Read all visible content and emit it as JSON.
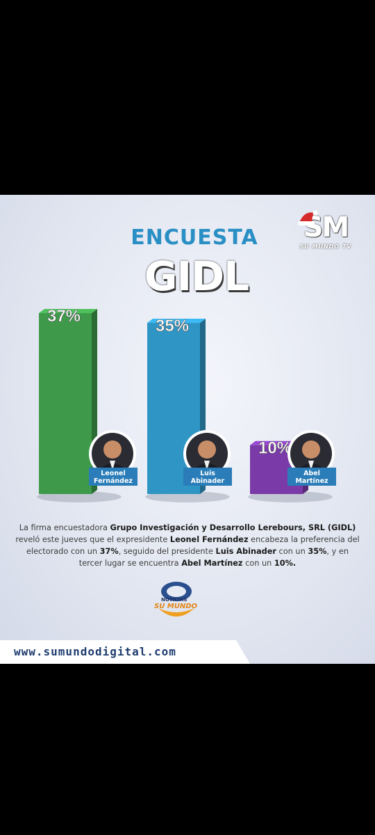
{
  "header": {
    "title_line1": "ENCUESTA",
    "title_line2": "GIDL"
  },
  "brand_logo": {
    "letters": "SM",
    "subtitle": "SU MUNDO TV"
  },
  "chart_data": {
    "type": "bar",
    "categories": [
      "Leonel Fernández",
      "Luis Abinader",
      "Abel Martínez"
    ],
    "values": [
      37,
      35,
      10
    ],
    "value_labels": [
      "37%",
      "35%",
      "10%"
    ],
    "name_labels": [
      [
        "Leonel",
        "Fernández"
      ],
      [
        "Luis",
        "Abinader"
      ],
      [
        "Abel",
        "Martínez"
      ]
    ],
    "colors": [
      "#3e9a4a",
      "#2f95c4",
      "#7a3aa8"
    ],
    "title": "ENCUESTA GIDL",
    "xlabel": "",
    "ylabel": "",
    "ylim": [
      0,
      37
    ],
    "grid": false,
    "legend": "none"
  },
  "description": {
    "parts": [
      {
        "t": "La firma encuestadora ",
        "b": false
      },
      {
        "t": "Grupo Investigación y Desarrollo Lerebours, SRL (GIDL)",
        "b": true
      },
      {
        "t": " reveló este jueves que el expresidente ",
        "b": false
      },
      {
        "t": "Leonel Fernández",
        "b": true
      },
      {
        "t": " encabeza la preferencia del electorado con un ",
        "b": false
      },
      {
        "t": "37%",
        "b": true
      },
      {
        "t": ", seguido del presidente ",
        "b": false
      },
      {
        "t": "Luis Abinader",
        "b": true
      },
      {
        "t": " con un ",
        "b": false
      },
      {
        "t": "35%",
        "b": true
      },
      {
        "t": ", y en tercer lugar se encuentra ",
        "b": false
      },
      {
        "t": "Abel Martínez",
        "b": true
      },
      {
        "t": " con un ",
        "b": false
      },
      {
        "t": "10%.",
        "b": true
      }
    ]
  },
  "footer_logo": {
    "line1": "NOTICIAS",
    "line2": "SU MUNDO"
  },
  "footer": {
    "url": "www.sumundodigital.com"
  }
}
